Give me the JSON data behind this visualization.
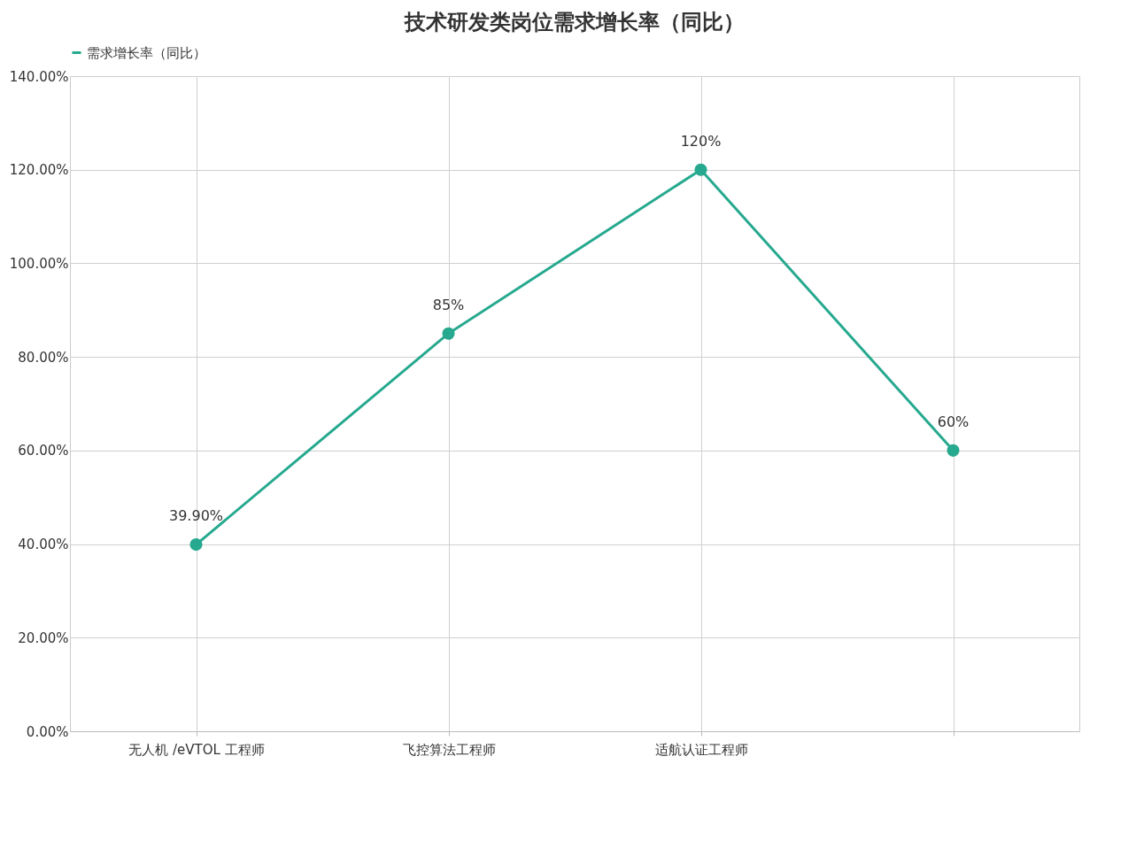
{
  "chart_data": {
    "type": "line",
    "title": "技术研发类岗位需求增长率（同比）",
    "categories": [
      "无人机 /eVTOL 工程师",
      "飞控算法工程师",
      "适航认证工程师",
      null
    ],
    "series": [
      {
        "name": "需求增长率（同比）",
        "color": "#26a98f",
        "values": [
          39.9,
          85,
          120,
          60
        ],
        "value_labels": [
          "39.90%",
          "85%",
          "120%",
          "60%"
        ]
      }
    ],
    "ylim": [
      0,
      140
    ],
    "yticks": [
      {
        "value": 0,
        "label": "0.00%"
      },
      {
        "value": 20,
        "label": "20.00%"
      },
      {
        "value": 40,
        "label": "40.00%"
      },
      {
        "value": 60,
        "label": "60.00%"
      },
      {
        "value": 80,
        "label": "80.00%"
      },
      {
        "value": 100,
        "label": "100.00%"
      },
      {
        "value": 120,
        "label": "120.00%"
      },
      {
        "value": 140,
        "label": "140.00%"
      }
    ],
    "grid": true,
    "legend": "top",
    "marker": "circle",
    "line_style": "solid"
  }
}
